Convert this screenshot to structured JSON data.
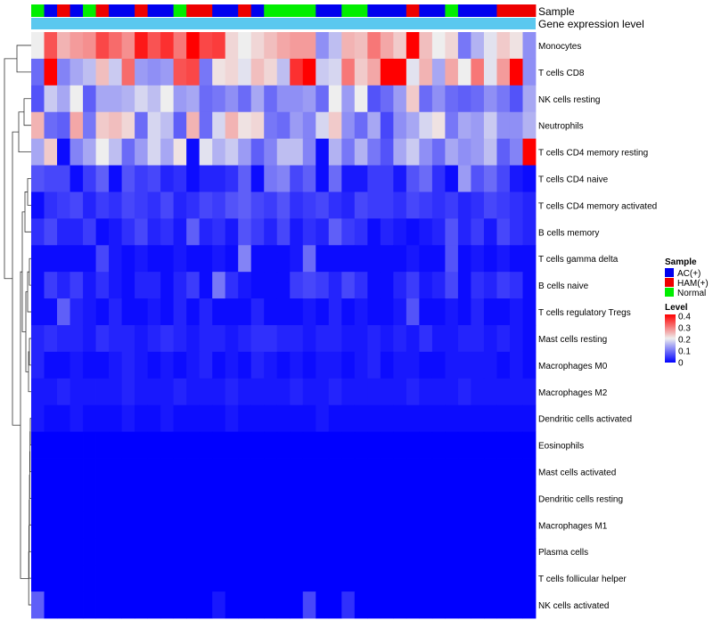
{
  "chart_data": {
    "type": "heatmap",
    "title": "",
    "annotation_tracks": [
      {
        "name": "Sample",
        "label": "Sample"
      },
      {
        "name": "Gene expression level",
        "label": "Gene expression level",
        "color": "#5bc8ef"
      }
    ],
    "sample_annotation": [
      "Normal",
      "AC(+)",
      "HAM(+)",
      "AC(+)",
      "Normal",
      "HAM(+)",
      "AC(+)",
      "AC(+)",
      "HAM(+)",
      "AC(+)",
      "AC(+)",
      "Normal",
      "HAM(+)",
      "HAM(+)",
      "AC(+)",
      "AC(+)",
      "HAM(+)",
      "AC(+)",
      "Normal",
      "Normal",
      "Normal",
      "Normal",
      "AC(+)",
      "AC(+)",
      "Normal",
      "Normal",
      "AC(+)",
      "AC(+)",
      "AC(+)",
      "HAM(+)",
      "AC(+)",
      "AC(+)",
      "Normal",
      "AC(+)",
      "AC(+)",
      "AC(+)",
      "HAM(+)",
      "HAM(+)",
      "HAM(+)"
    ],
    "rows": [
      "Monocytes",
      "T cells CD8",
      "NK cells resting",
      "Neutrophils",
      "T cells CD4 memory resting",
      "T cells CD4 naive",
      "T cells CD4 memory activated",
      "B cells memory",
      "T cells gamma delta",
      "B cells naive",
      "T cells regulatory  Tregs",
      "Mast cells resting",
      "Macrophages M0",
      "Macrophages M2",
      "Dendritic cells activated",
      "Eosinophils",
      "Mast cells activated",
      "Dendritic cells resting",
      "Macrophages M1",
      "Plasma cells",
      "T cells follicular helper",
      "NK cells activated"
    ],
    "values": [
      [
        0.2,
        0.33,
        0.25,
        0.27,
        0.28,
        0.34,
        0.31,
        0.28,
        0.38,
        0.33,
        0.36,
        0.3,
        0.4,
        0.34,
        0.35,
        0.22,
        0.2,
        0.22,
        0.24,
        0.26,
        0.27,
        0.27,
        0.12,
        0.16,
        0.25,
        0.24,
        0.3,
        0.26,
        0.23,
        0.4,
        0.24,
        0.2,
        0.22,
        0.1,
        0.15,
        0.19,
        0.23,
        0.21,
        0.12
      ],
      [
        0.09,
        0.4,
        0.11,
        0.14,
        0.16,
        0.24,
        0.17,
        0.31,
        0.13,
        0.12,
        0.13,
        0.33,
        0.34,
        0.1,
        0.21,
        0.22,
        0.19,
        0.24,
        0.22,
        0.16,
        0.36,
        0.4,
        0.17,
        0.18,
        0.3,
        0.23,
        0.26,
        0.4,
        0.4,
        0.19,
        0.25,
        0.14,
        0.26,
        0.2,
        0.3,
        0.19,
        0.27,
        0.4,
        0.12
      ],
      [
        0.07,
        0.17,
        0.14,
        0.2,
        0.08,
        0.14,
        0.14,
        0.15,
        0.18,
        0.16,
        0.2,
        0.13,
        0.14,
        0.09,
        0.1,
        0.12,
        0.09,
        0.14,
        0.09,
        0.12,
        0.12,
        0.13,
        0.09,
        0.2,
        0.13,
        0.2,
        0.07,
        0.09,
        0.13,
        0.23,
        0.09,
        0.12,
        0.09,
        0.08,
        0.09,
        0.12,
        0.1,
        0.07,
        0.14
      ],
      [
        0.25,
        0.09,
        0.08,
        0.26,
        0.1,
        0.23,
        0.24,
        0.22,
        0.09,
        0.18,
        0.16,
        0.08,
        0.25,
        0.09,
        0.18,
        0.25,
        0.21,
        0.22,
        0.1,
        0.09,
        0.13,
        0.11,
        0.18,
        0.23,
        0.12,
        0.09,
        0.14,
        0.06,
        0.12,
        0.14,
        0.18,
        0.21,
        0.1,
        0.14,
        0.13,
        0.17,
        0.12,
        0.12,
        0.15
      ],
      [
        0.14,
        0.23,
        0.01,
        0.11,
        0.14,
        0.2,
        0.16,
        0.09,
        0.13,
        0.18,
        0.14,
        0.21,
        0.01,
        0.19,
        0.15,
        0.17,
        0.13,
        0.08,
        0.11,
        0.16,
        0.16,
        0.11,
        0.01,
        0.15,
        0.1,
        0.15,
        0.1,
        0.07,
        0.14,
        0.17,
        0.12,
        0.09,
        0.14,
        0.12,
        0.13,
        0.16,
        0.08,
        0.11,
        0.4
      ],
      [
        0.07,
        0.06,
        0.06,
        0.01,
        0.05,
        0.08,
        0.01,
        0.07,
        0.05,
        0.06,
        0.03,
        0.04,
        0.01,
        0.03,
        0.03,
        0.04,
        0.08,
        0.01,
        0.1,
        0.11,
        0.06,
        0.08,
        0.01,
        0.09,
        0.02,
        0.02,
        0.05,
        0.05,
        0.02,
        0.07,
        0.09,
        0.04,
        0.01,
        0.13,
        0.07,
        0.09,
        0.06,
        0.02,
        0.01
      ],
      [
        0.01,
        0.04,
        0.05,
        0.06,
        0.03,
        0.05,
        0.04,
        0.06,
        0.05,
        0.04,
        0.06,
        0.03,
        0.04,
        0.06,
        0.05,
        0.07,
        0.08,
        0.06,
        0.05,
        0.07,
        0.04,
        0.05,
        0.06,
        0.04,
        0.03,
        0.06,
        0.05,
        0.05,
        0.04,
        0.06,
        0.05,
        0.04,
        0.05,
        0.03,
        0.04,
        0.06,
        0.05,
        0.04,
        0.03
      ],
      [
        0.04,
        0.06,
        0.03,
        0.03,
        0.05,
        0.01,
        0.02,
        0.04,
        0.06,
        0.03,
        0.04,
        0.02,
        0.08,
        0.03,
        0.04,
        0.02,
        0.07,
        0.05,
        0.03,
        0.06,
        0.02,
        0.04,
        0.03,
        0.08,
        0.05,
        0.04,
        0.01,
        0.03,
        0.02,
        0.01,
        0.02,
        0.03,
        0.07,
        0.03,
        0.05,
        0.02,
        0.06,
        0.04,
        0.03
      ],
      [
        0.01,
        0.01,
        0.01,
        0.01,
        0.01,
        0.06,
        0.02,
        0.01,
        0.02,
        0.01,
        0.01,
        0.02,
        0.01,
        0.01,
        0.02,
        0.01,
        0.11,
        0.01,
        0.01,
        0.01,
        0.02,
        0.09,
        0.01,
        0.01,
        0.01,
        0.01,
        0.01,
        0.01,
        0.01,
        0.02,
        0.01,
        0.01,
        0.07,
        0.01,
        0.02,
        0.01,
        0.02,
        0.01,
        0.01
      ],
      [
        0.01,
        0.05,
        0.03,
        0.05,
        0.02,
        0.04,
        0.02,
        0.01,
        0.03,
        0.03,
        0.01,
        0.03,
        0.05,
        0.01,
        0.1,
        0.04,
        0.02,
        0.01,
        0.01,
        0.01,
        0.05,
        0.06,
        0.05,
        0.03,
        0.06,
        0.04,
        0.01,
        0.01,
        0.03,
        0.05,
        0.02,
        0.03,
        0.06,
        0.01,
        0.04,
        0.03,
        0.05,
        0.04,
        0.01
      ],
      [
        0.01,
        0.01,
        0.08,
        0.03,
        0.02,
        0.01,
        0.03,
        0.01,
        0.01,
        0.02,
        0.01,
        0.03,
        0.01,
        0.03,
        0.01,
        0.01,
        0.01,
        0.03,
        0.01,
        0.01,
        0.01,
        0.02,
        0.01,
        0.03,
        0.01,
        0.02,
        0.01,
        0.01,
        0.02,
        0.07,
        0.01,
        0.01,
        0.02,
        0.01,
        0.03,
        0.01,
        0.01,
        0.02,
        0.01
      ],
      [
        0.03,
        0.04,
        0.03,
        0.03,
        0.02,
        0.04,
        0.03,
        0.03,
        0.02,
        0.03,
        0.04,
        0.03,
        0.02,
        0.03,
        0.03,
        0.02,
        0.03,
        0.04,
        0.04,
        0.03,
        0.03,
        0.02,
        0.03,
        0.03,
        0.02,
        0.02,
        0.03,
        0.02,
        0.03,
        0.02,
        0.04,
        0.02,
        0.02,
        0.03,
        0.03,
        0.02,
        0.03,
        0.02,
        0.01
      ],
      [
        0.03,
        0.01,
        0.01,
        0.02,
        0.01,
        0.01,
        0.02,
        0.03,
        0.02,
        0.01,
        0.02,
        0.01,
        0.02,
        0.03,
        0.01,
        0.02,
        0.01,
        0.03,
        0.02,
        0.01,
        0.02,
        0.01,
        0.02,
        0.02,
        0.01,
        0.02,
        0.03,
        0.01,
        0.02,
        0.02,
        0.01,
        0.01,
        0.02,
        0.02,
        0.02,
        0.02,
        0.01,
        0.02,
        0.01
      ],
      [
        0.02,
        0.02,
        0.03,
        0.02,
        0.02,
        0.02,
        0.02,
        0.03,
        0.02,
        0.02,
        0.02,
        0.03,
        0.02,
        0.02,
        0.02,
        0.03,
        0.02,
        0.02,
        0.02,
        0.02,
        0.03,
        0.02,
        0.02,
        0.03,
        0.02,
        0.02,
        0.02,
        0.02,
        0.02,
        0.03,
        0.02,
        0.02,
        0.02,
        0.03,
        0.02,
        0.02,
        0.02,
        0.02,
        0.02
      ],
      [
        0.02,
        0.01,
        0.01,
        0.02,
        0.01,
        0.01,
        0.01,
        0.02,
        0.01,
        0.01,
        0.02,
        0.01,
        0.01,
        0.01,
        0.01,
        0.02,
        0.01,
        0.01,
        0.01,
        0.01,
        0.01,
        0.01,
        0.02,
        0.01,
        0.01,
        0.01,
        0.01,
        0.01,
        0.01,
        0.01,
        0.01,
        0.01,
        0.01,
        0.01,
        0.01,
        0.01,
        0.01,
        0.01,
        0.01
      ],
      [
        0,
        0,
        0,
        0,
        0,
        0,
        0,
        0,
        0,
        0,
        0,
        0,
        0,
        0,
        0,
        0,
        0,
        0,
        0,
        0,
        0,
        0,
        0,
        0,
        0,
        0,
        0,
        0,
        0,
        0,
        0,
        0,
        0,
        0,
        0,
        0,
        0,
        0,
        0
      ],
      [
        0,
        0,
        0,
        0,
        0,
        0,
        0,
        0,
        0,
        0,
        0,
        0,
        0,
        0,
        0,
        0,
        0,
        0,
        0,
        0,
        0,
        0,
        0,
        0,
        0,
        0,
        0,
        0,
        0,
        0,
        0,
        0,
        0,
        0,
        0,
        0,
        0,
        0,
        0
      ],
      [
        0,
        0,
        0,
        0,
        0,
        0,
        0,
        0,
        0,
        0,
        0,
        0,
        0,
        0,
        0,
        0,
        0,
        0,
        0,
        0,
        0,
        0,
        0,
        0,
        0,
        0,
        0,
        0,
        0,
        0,
        0,
        0,
        0,
        0,
        0,
        0,
        0,
        0,
        0
      ],
      [
        0,
        0,
        0,
        0,
        0,
        0,
        0,
        0,
        0,
        0,
        0,
        0,
        0,
        0,
        0,
        0,
        0,
        0,
        0,
        0,
        0,
        0,
        0,
        0,
        0,
        0,
        0,
        0,
        0,
        0,
        0,
        0,
        0,
        0,
        0,
        0,
        0,
        0,
        0
      ],
      [
        0,
        0,
        0,
        0,
        0,
        0,
        0,
        0,
        0,
        0,
        0,
        0,
        0,
        0,
        0,
        0,
        0,
        0,
        0,
        0,
        0,
        0,
        0,
        0,
        0,
        0,
        0,
        0,
        0,
        0,
        0,
        0,
        0,
        0,
        0,
        0,
        0,
        0,
        0
      ],
      [
        0,
        0,
        0,
        0,
        0,
        0,
        0,
        0,
        0,
        0,
        0,
        0,
        0,
        0,
        0,
        0,
        0,
        0,
        0,
        0,
        0,
        0,
        0,
        0,
        0,
        0,
        0,
        0,
        0,
        0,
        0,
        0,
        0,
        0,
        0,
        0,
        0,
        0,
        0
      ],
      [
        0.08,
        0,
        0,
        0,
        0,
        0,
        0,
        0,
        0,
        0,
        0,
        0,
        0,
        0,
        0.02,
        0,
        0,
        0,
        0,
        0,
        0,
        0.06,
        0,
        0,
        0.04,
        0,
        0,
        0,
        0,
        0,
        0,
        0,
        0,
        0,
        0,
        0,
        0,
        0,
        0
      ]
    ],
    "legend": {
      "sample": {
        "title": "Sample",
        "items": [
          {
            "label": "AC(+)",
            "color": "#0000ee"
          },
          {
            "label": "HAM(+)",
            "color": "#ee0000"
          },
          {
            "label": "Normal",
            "color": "#00ee00"
          }
        ]
      },
      "level": {
        "title": "Level",
        "range": [
          0,
          0.4
        ],
        "ticks": [
          "0.4",
          "0.3",
          "0.2",
          "0.1",
          "0"
        ],
        "colors": {
          "low": "#0000ff",
          "mid": "#eeeeee",
          "high": "#ff0000"
        }
      }
    }
  }
}
